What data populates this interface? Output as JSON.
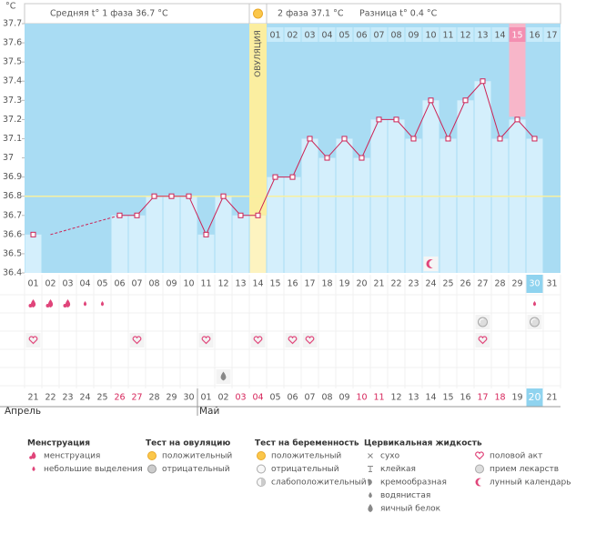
{
  "chart_data": {
    "type": "line",
    "unit": "°C",
    "header": {
      "phase1": "Средняя t° 1 фаза 36.7 °C",
      "phase2": "2 фаза 37.1 °C",
      "diff": "Разница t° 0.4 °C"
    },
    "ovulation_label": "ОВУЛЯЦИЯ",
    "categories": [
      "01",
      "02",
      "03",
      "04",
      "05",
      "06",
      "07",
      "08",
      "09",
      "10",
      "11",
      "12",
      "13",
      "14",
      "15",
      "16",
      "17",
      "18",
      "19",
      "20",
      "21",
      "22",
      "23",
      "24",
      "25",
      "26",
      "27",
      "28",
      "29",
      "30",
      "31"
    ],
    "values": [
      36.6,
      null,
      null,
      null,
      null,
      36.7,
      36.7,
      36.8,
      36.8,
      36.8,
      36.6,
      36.8,
      36.7,
      36.7,
      36.9,
      36.9,
      37.1,
      37.0,
      37.1,
      37.0,
      37.2,
      37.2,
      37.1,
      37.3,
      37.1,
      37.3,
      37.4,
      37.1,
      37.2,
      37.1,
      null
    ],
    "coverline": 36.8,
    "ylim": [
      36.4,
      37.7
    ],
    "yticks": [
      36.4,
      36.5,
      36.6,
      36.7,
      36.8,
      36.9,
      37,
      37.1,
      37.2,
      37.3,
      37.4,
      37.5,
      37.6,
      37.7
    ],
    "cycle_days": [
      null,
      null,
      null,
      null,
      null,
      null,
      null,
      null,
      null,
      null,
      null,
      null,
      null,
      null,
      "01",
      "02",
      "03",
      "04",
      "05",
      "06",
      "07",
      "08",
      "09",
      "10",
      "11",
      "12",
      "13",
      "14",
      "15",
      "16",
      "17"
    ],
    "column_marks": [
      null,
      null,
      null,
      null,
      null,
      null,
      null,
      null,
      null,
      null,
      null,
      null,
      null,
      null,
      null,
      null,
      null,
      null,
      null,
      null,
      null,
      null,
      null,
      "moon",
      null,
      null,
      null,
      null,
      "pink",
      "today",
      null
    ],
    "symbol_rows": [
      [
        "drop",
        "drop",
        "drop",
        "small-drop",
        "small-drop",
        null,
        null,
        null,
        null,
        null,
        null,
        null,
        null,
        null,
        null,
        null,
        null,
        null,
        null,
        null,
        null,
        null,
        null,
        null,
        null,
        null,
        null,
        null,
        null,
        "small-drop",
        null
      ],
      [
        null,
        null,
        null,
        null,
        null,
        null,
        null,
        null,
        null,
        null,
        null,
        null,
        null,
        null,
        null,
        null,
        null,
        null,
        null,
        null,
        null,
        null,
        null,
        null,
        null,
        null,
        "pill",
        null,
        null,
        "pill",
        null
      ],
      [
        "heart",
        null,
        null,
        null,
        null,
        null,
        "heart",
        null,
        null,
        null,
        "heart",
        null,
        null,
        "heart",
        null,
        "heart",
        "heart",
        null,
        null,
        null,
        null,
        null,
        null,
        null,
        null,
        null,
        "heart",
        null,
        null,
        null,
        null
      ],
      [
        null,
        null,
        null,
        null,
        null,
        null,
        null,
        null,
        null,
        null,
        null,
        null,
        null,
        null,
        null,
        null,
        null,
        null,
        null,
        null,
        null,
        null,
        null,
        null,
        null,
        null,
        null,
        null,
        null,
        null,
        null
      ],
      [
        null,
        null,
        null,
        null,
        null,
        null,
        null,
        null,
        null,
        null,
        null,
        "egg-white",
        null,
        null,
        null,
        null,
        null,
        null,
        null,
        null,
        null,
        null,
        null,
        null,
        null,
        null,
        null,
        null,
        null,
        null,
        null
      ]
    ],
    "calendar_dates": [
      "21",
      "22",
      "23",
      "24",
      "25",
      "26",
      "27",
      "28",
      "29",
      "30",
      "01",
      "02",
      "03",
      "04",
      "05",
      "06",
      "07",
      "08",
      "09",
      "10",
      "11",
      "12",
      "13",
      "14",
      "15",
      "16",
      "17",
      "18",
      "19",
      "20",
      "21"
    ],
    "calendar_red": [
      false,
      false,
      false,
      false,
      false,
      true,
      true,
      false,
      false,
      false,
      false,
      false,
      true,
      true,
      false,
      false,
      false,
      false,
      false,
      true,
      true,
      false,
      false,
      false,
      false,
      false,
      true,
      true,
      false,
      false,
      false
    ],
    "months": [
      "Апрель",
      "Май"
    ],
    "legend": [
      {
        "title": "Менструация",
        "items": [
          "менструация",
          "небольшие выделения"
        ]
      },
      {
        "title": "Тест на овуляцию",
        "items": [
          "положительный",
          "отрицательный"
        ]
      },
      {
        "title": "Тест на беременность",
        "items": [
          "положительный",
          "отрицательный",
          "слабоположительный"
        ]
      },
      {
        "title": "Цервикальная жидкость",
        "items": [
          "сухо",
          "клейкая",
          "кремообразная",
          "водянистая",
          "яичный белок"
        ]
      },
      {
        "items": [
          "половой акт",
          "прием лекарств",
          "лунный календарь"
        ]
      }
    ]
  }
}
